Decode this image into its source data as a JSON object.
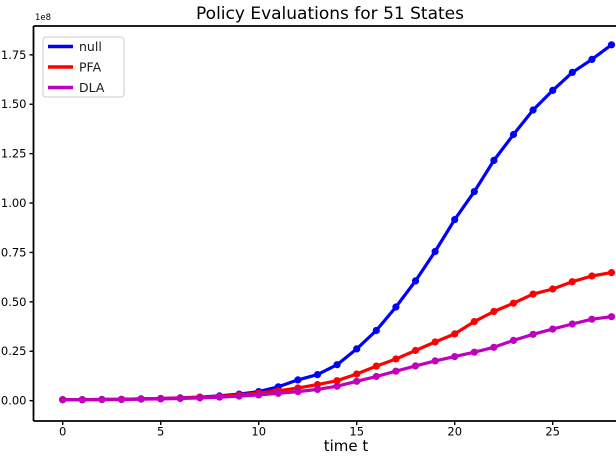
{
  "figure": {
    "title": "Policy Evaluations for 51 States",
    "xlabel": "time t",
    "y_offset_label": "1e8"
  },
  "chart_data": {
    "type": "line",
    "title": "Policy Evaluations for 51 States",
    "xlabel": "time t",
    "ylabel": "",
    "y_scale_offset": "1e8",
    "grid": false,
    "marker": "o",
    "legend_position": "upper left",
    "xlim": [
      -1.49,
      28.23
    ],
    "ylim": [
      -0.103,
      1.896
    ],
    "xticks": [
      0,
      5,
      10,
      15,
      20,
      25
    ],
    "xtick_labels": [
      "0",
      "5",
      "10",
      "15",
      "20",
      "25"
    ],
    "yticks": [
      0.0,
      0.25,
      0.5,
      0.75,
      1.0,
      1.25,
      1.5,
      1.75
    ],
    "ytick_labels": [
      "0.00",
      "0.25",
      "0.50",
      "0.75",
      "1.00",
      "1.25",
      "1.50",
      "1.75"
    ],
    "x": [
      0,
      1,
      2,
      3,
      4,
      5,
      6,
      7,
      8,
      9,
      10,
      11,
      12,
      13,
      14,
      15,
      16,
      17,
      18,
      19,
      20,
      21,
      22,
      23,
      24,
      25,
      26,
      27,
      28
    ],
    "series": [
      {
        "name": "null",
        "color": "#0000ff",
        "values": [
          0.005,
          0.005,
          0.006,
          0.007,
          0.009,
          0.011,
          0.014,
          0.018,
          0.024,
          0.033,
          0.046,
          0.07,
          0.105,
          0.132,
          0.182,
          0.262,
          0.355,
          0.474,
          0.606,
          0.755,
          0.916,
          1.058,
          1.216,
          1.347,
          1.471,
          1.57,
          1.661,
          1.727,
          1.801
        ]
      },
      {
        "name": "PFA",
        "color": "#ff0000",
        "values": [
          0.005,
          0.005,
          0.006,
          0.007,
          0.009,
          0.011,
          0.013,
          0.017,
          0.022,
          0.029,
          0.038,
          0.05,
          0.064,
          0.081,
          0.101,
          0.135,
          0.175,
          0.211,
          0.254,
          0.297,
          0.338,
          0.4,
          0.451,
          0.493,
          0.539,
          0.565,
          0.602,
          0.631,
          0.648
        ]
      },
      {
        "name": "DLA",
        "color": "#bf00bf",
        "values": [
          0.005,
          0.005,
          0.006,
          0.006,
          0.008,
          0.009,
          0.011,
          0.014,
          0.018,
          0.023,
          0.029,
          0.037,
          0.046,
          0.057,
          0.073,
          0.098,
          0.122,
          0.149,
          0.176,
          0.201,
          0.223,
          0.245,
          0.27,
          0.305,
          0.336,
          0.362,
          0.388,
          0.412,
          0.425
        ]
      }
    ]
  }
}
